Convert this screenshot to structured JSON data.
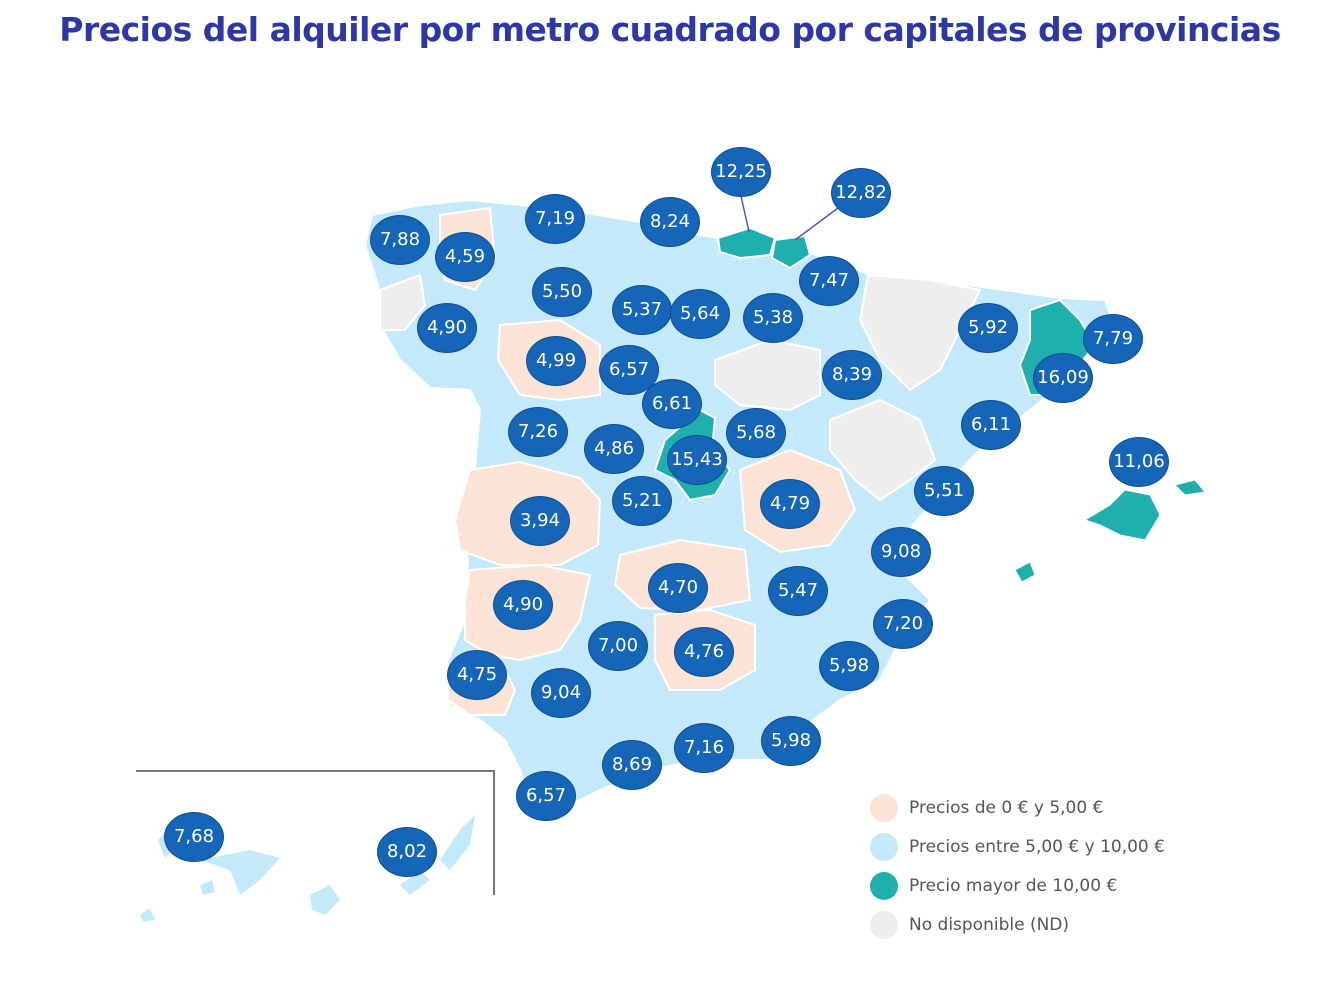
{
  "title": "Precios del alquiler por metro cuadrado por capitales de provincias",
  "colors": {
    "low": "#fbe3d5",
    "mid": "#c4e9fa",
    "high": "#1fb0ad",
    "nd": "#eeeeee",
    "bubble": "#1565b8",
    "title": "#2e37a8"
  },
  "legend": [
    {
      "label": "Precios de 0 € y 5,00 €",
      "color": "#fbe3d5"
    },
    {
      "label": "Precios entre 5,00 € y 10,00 €",
      "color": "#c4e9fa"
    },
    {
      "label": "Precio mayor de 10,00 €",
      "color": "#1fb0ad"
    },
    {
      "label": "No disponible (ND)",
      "color": "#eeeeee"
    }
  ],
  "prices": [
    "7,88",
    "4,59",
    "7,19",
    "8,24",
    "12,25",
    "12,82",
    "5,50",
    "7,47",
    "4,90",
    "5,37",
    "5,64",
    "5,38",
    "5,92",
    "7,79",
    "4,99",
    "6,57",
    "8,39",
    "16,09",
    "6,61",
    "7,26",
    "4,86",
    "15,43",
    "5,68",
    "6,11",
    "11,06",
    "5,51",
    "5,21",
    "4,79",
    "3,94",
    "9,08",
    "4,70",
    "5,47",
    "4,90",
    "7,20",
    "7,00",
    "4,76",
    "5,98",
    "4,75",
    "9,04",
    "7,16",
    "5,98",
    "8,69",
    "6,57",
    "7,68",
    "8,02"
  ]
}
